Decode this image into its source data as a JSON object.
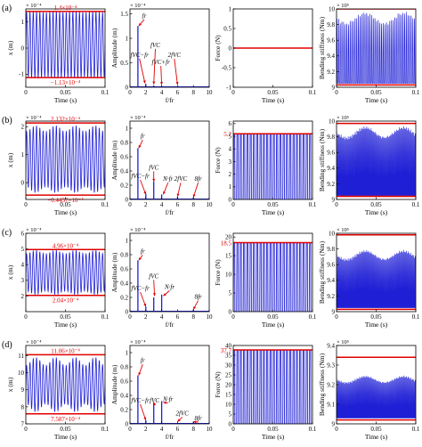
{
  "colors": {
    "signal": "#1f1fd6",
    "mark": "#e00000",
    "axis": "#000000"
  },
  "row_labels": [
    "(a)",
    "(b)",
    "(c)",
    "(d)"
  ],
  "axis_text": {
    "time_xlabel": "Time (s)",
    "freq_xlabel": "f/fr",
    "disp_ylabel": "x (m)",
    "amp_ylabel": "Amplitude (m)",
    "force_ylabel": "Force (N)",
    "stiff_ylabel": "Bending stiffness (Nm)"
  },
  "chart_data": [
    {
      "type": "line",
      "row": "(a)",
      "panel": "displacement",
      "multiplier": "× 10⁻⁴",
      "xlim": [
        0,
        0.1
      ],
      "ylim": [
        -1.5,
        1.5
      ],
      "xticks": [
        "0",
        "0.05",
        "0.1"
      ],
      "yticks": [
        "-1",
        "0",
        "1"
      ],
      "bands": [
        {
          "value": 1.4,
          "label": "1.4×10⁻⁴"
        },
        {
          "value": -1.13,
          "label": "−1.13×10⁻⁴"
        }
      ],
      "signal": {
        "center": 0.13,
        "amp": 1.27,
        "cycles": 24,
        "mod": 0.03
      }
    },
    {
      "type": "bar",
      "row": "(a)",
      "panel": "spectrum",
      "multiplier": "× 10⁻⁴",
      "xlim": [
        0,
        10
      ],
      "ylim": [
        0,
        1.6
      ],
      "xticks": [
        "0",
        "2",
        "4",
        "6",
        "8",
        "10"
      ],
      "yticks": [
        "0",
        "0.5",
        "1",
        "1.5"
      ],
      "lines": [
        {
          "x": 1,
          "y": 1.25
        },
        {
          "x": 2,
          "y": 0.07
        },
        {
          "x": 3,
          "y": 0.04
        },
        {
          "x": 4,
          "y": 0.03
        }
      ],
      "annotations": [
        {
          "text": "fr",
          "tx": 1.8,
          "ty": 1.42,
          "ax": 1.1,
          "ay": 1.25
        },
        {
          "text": "fVC−fr",
          "tx": 1.2,
          "ty": 0.62,
          "ax": 1.9,
          "ay": 0.08
        },
        {
          "text": "fVC",
          "tx": 3.2,
          "ty": 0.82,
          "ax": 3.0,
          "ay": 0.06
        },
        {
          "text": "fVC+fr",
          "tx": 3.9,
          "ty": 0.47,
          "ax": 4.0,
          "ay": 0.05
        },
        {
          "text": "2fVC",
          "tx": 5.6,
          "ty": 0.62,
          "ax": 6.0,
          "ay": 0.05
        }
      ]
    },
    {
      "type": "line",
      "row": "(a)",
      "panel": "force",
      "multiplier": "",
      "xlim": [
        0,
        0.1
      ],
      "ylim": [
        -1,
        1
      ],
      "xticks": [
        "0",
        "0.05",
        "0.1"
      ],
      "yticks": [
        "-1",
        "-0.5",
        "0",
        "0.5",
        "1"
      ],
      "value": 0,
      "bands": []
    },
    {
      "type": "line",
      "row": "(a)",
      "panel": "stiffness",
      "multiplier": "× 10⁵",
      "xlim": [
        0,
        0.1
      ],
      "ylim": [
        9,
        10
      ],
      "xticks": [
        "0",
        "0.05",
        "0.1"
      ],
      "yticks": [
        "9",
        "9.2",
        "9.4",
        "9.6",
        "9.8",
        "10"
      ],
      "bands": [
        {
          "value": 10,
          "label": ""
        },
        {
          "value": 9.03,
          "label": ""
        }
      ],
      "signal": {
        "low": 9.05,
        "high": 9.95,
        "cycles": 48
      }
    },
    {
      "type": "line",
      "row": "(b)",
      "panel": "displacement",
      "multiplier": "× 10⁻⁴",
      "xlim": [
        0,
        0.1
      ],
      "ylim": [
        -0.6,
        2.2
      ],
      "xticks": [
        "0",
        "0.05",
        "0.1"
      ],
      "yticks": [
        "0",
        "1",
        "2"
      ],
      "bands": [
        {
          "value": 2.132,
          "label": "2.132×10⁻⁴"
        },
        {
          "value": -0.4457,
          "label": "−0.4457×10⁻⁴"
        }
      ],
      "signal": {
        "center": 0.84,
        "amp": 1.2,
        "cycles": 24,
        "mod": 0.18
      }
    },
    {
      "type": "bar",
      "row": "(b)",
      "panel": "spectrum",
      "multiplier": "× 10⁻⁴",
      "xlim": [
        0,
        10
      ],
      "ylim": [
        0,
        1.1
      ],
      "xticks": [
        "0",
        "2",
        "4",
        "6",
        "8",
        "10"
      ],
      "yticks": [
        "0",
        "0.2",
        "0.4",
        "0.6",
        "0.8",
        "1"
      ],
      "lines": [
        {
          "x": 1,
          "y": 0.72
        },
        {
          "x": 2,
          "y": 0.08
        },
        {
          "x": 3,
          "y": 0.25
        },
        {
          "x": 4,
          "y": 0.07
        },
        {
          "x": 6,
          "y": 0.04
        },
        {
          "x": 8,
          "y": 0.03
        }
      ],
      "annotations": [
        {
          "text": "fr",
          "tx": 1.6,
          "ty": 0.86,
          "ax": 1.1,
          "ay": 0.72
        },
        {
          "text": "fVC−fr",
          "tx": 1.3,
          "ty": 0.3,
          "ax": 2.0,
          "ay": 0.07
        },
        {
          "text": "fVC",
          "tx": 3.0,
          "ty": 0.42,
          "ax": 3.0,
          "ay": 0.25
        },
        {
          "text": "N·fr",
          "tx": 4.8,
          "ty": 0.26,
          "ax": 4.2,
          "ay": 0.07
        },
        {
          "text": "2fVC",
          "tx": 6.4,
          "ty": 0.26,
          "ax": 6.0,
          "ay": 0.04
        },
        {
          "text": "8fr",
          "tx": 8.6,
          "ty": 0.26,
          "ax": 8.0,
          "ay": 0.03
        }
      ]
    },
    {
      "type": "line",
      "row": "(b)",
      "panel": "force",
      "multiplier": "",
      "xlim": [
        0,
        0.1
      ],
      "ylim": [
        0,
        6.2
      ],
      "xticks": [
        "0",
        "0.05",
        "0.1"
      ],
      "yticks": [
        "0",
        "1",
        "2",
        "3",
        "4",
        "5",
        "6"
      ],
      "bands": [
        {
          "value": 5.2,
          "label": "5.2"
        }
      ],
      "signal": {
        "peak": 5.2,
        "cycles": 24
      }
    },
    {
      "type": "line",
      "row": "(b)",
      "panel": "stiffness",
      "multiplier": "× 10⁵",
      "xlim": [
        0,
        0.1
      ],
      "ylim": [
        9,
        10
      ],
      "xticks": [
        "0",
        "0.05",
        "0.1"
      ],
      "yticks": [
        "9",
        "9.2",
        "9.4",
        "9.6",
        "9.8",
        "10"
      ],
      "bands": [
        {
          "value": 9.97,
          "label": ""
        },
        {
          "value": 9.04,
          "label": ""
        }
      ],
      "signal": {
        "low": 9.05,
        "high": 9.95,
        "cycles": 90
      }
    },
    {
      "type": "line",
      "row": "(c)",
      "panel": "displacement",
      "multiplier": "× 10⁻⁴",
      "xlim": [
        0,
        0.1
      ],
      "ylim": [
        1,
        6
      ],
      "xticks": [
        "0",
        "0.05",
        "0.1"
      ],
      "yticks": [
        "2",
        "3",
        "4",
        "5",
        "6"
      ],
      "bands": [
        {
          "value": 4.96,
          "label": "4.96×10⁻⁴"
        },
        {
          "value": 2.04,
          "label": "2.04×10⁻⁴"
        }
      ],
      "signal": {
        "center": 3.5,
        "amp": 1.4,
        "cycles": 24,
        "mod": 0.15
      }
    },
    {
      "type": "bar",
      "row": "(c)",
      "panel": "spectrum",
      "multiplier": "× 10⁻⁴",
      "xlim": [
        0,
        10
      ],
      "ylim": [
        0,
        1.1
      ],
      "xticks": [
        "0",
        "2",
        "4",
        "6",
        "8",
        "10"
      ],
      "yticks": [
        "0",
        "0.2",
        "0.4",
        "0.6",
        "0.8",
        "1"
      ],
      "lines": [
        {
          "x": 1,
          "y": 0.72
        },
        {
          "x": 2,
          "y": 0.07
        },
        {
          "x": 3,
          "y": 0.2
        },
        {
          "x": 4,
          "y": 0.24
        },
        {
          "x": 8,
          "y": 0.03
        }
      ],
      "annotations": [
        {
          "text": "fr",
          "tx": 1.6,
          "ty": 0.82,
          "ax": 1.1,
          "ay": 0.72
        },
        {
          "text": "fVC−fr",
          "tx": 1.3,
          "ty": 0.3,
          "ax": 2.0,
          "ay": 0.07
        },
        {
          "text": "fVC",
          "tx": 3.0,
          "ty": 0.47,
          "ax": 3.1,
          "ay": 0.22
        },
        {
          "text": "N·fr",
          "tx": 5.0,
          "ty": 0.32,
          "ax": 4.2,
          "ay": 0.22
        },
        {
          "text": "8fr",
          "tx": 8.6,
          "ty": 0.18,
          "ax": 8.0,
          "ay": 0.03
        }
      ]
    },
    {
      "type": "line",
      "row": "(c)",
      "panel": "force",
      "multiplier": "",
      "xlim": [
        0,
        0.1
      ],
      "ylim": [
        0,
        21
      ],
      "xticks": [
        "0",
        "0.05",
        "0.1"
      ],
      "yticks": [
        "0",
        "5",
        "10",
        "15",
        "20"
      ],
      "bands": [
        {
          "value": 18.5,
          "label": "18.5"
        }
      ],
      "signal": {
        "peak": 18.5,
        "cycles": 24
      }
    },
    {
      "type": "line",
      "row": "(c)",
      "panel": "stiffness",
      "multiplier": "× 10⁵",
      "xlim": [
        0,
        0.1
      ],
      "ylim": [
        9,
        10
      ],
      "xticks": [
        "0",
        "0.05",
        "0.1"
      ],
      "yticks": [
        "9",
        "9.2",
        "9.4",
        "9.6",
        "9.8",
        "10"
      ],
      "bands": [
        {
          "value": 9.98,
          "label": ""
        },
        {
          "value": 9.03,
          "label": ""
        }
      ],
      "signal": {
        "low": 9.05,
        "high": 9.8,
        "cycles": 90
      }
    },
    {
      "type": "line",
      "row": "(d)",
      "panel": "displacement",
      "multiplier": "× 10⁻⁴",
      "xlim": [
        0,
        0.1
      ],
      "ylim": [
        7,
        11.6
      ],
      "xticks": [
        "0",
        "0.05",
        "0.1"
      ],
      "yticks": [
        "7",
        "8",
        "9",
        "10",
        "11"
      ],
      "bands": [
        {
          "value": 11.06,
          "label": "11.06×10⁻⁴"
        },
        {
          "value": 7.587,
          "label": "7.587×10⁻⁴"
        }
      ],
      "signal": {
        "center": 9.3,
        "amp": 1.6,
        "cycles": 24,
        "mod": 0.3
      }
    },
    {
      "type": "bar",
      "row": "(d)",
      "panel": "spectrum",
      "multiplier": "× 10⁻⁴",
      "xlim": [
        0,
        10
      ],
      "ylim": [
        0,
        1.1
      ],
      "xticks": [
        "0",
        "2",
        "4",
        "6",
        "8",
        "10"
      ],
      "yticks": [
        "0",
        "0.2",
        "0.4",
        "0.6",
        "0.8",
        "1"
      ],
      "lines": [
        {
          "x": 1,
          "y": 0.68
        },
        {
          "x": 2,
          "y": 0.05
        },
        {
          "x": 3,
          "y": 0.3
        },
        {
          "x": 4,
          "y": 0.32
        },
        {
          "x": 8,
          "y": 0.03
        }
      ],
      "annotations": [
        {
          "text": "fr",
          "tx": 1.6,
          "ty": 0.86,
          "ax": 1.1,
          "ay": 0.68
        },
        {
          "text": "fVC−fr",
          "tx": 1.3,
          "ty": 0.3,
          "ax": 2.0,
          "ay": 0.05
        },
        {
          "text": "fVC",
          "tx": 3.1,
          "ty": 0.3,
          "ax": 3.0,
          "ay": 0.3
        },
        {
          "text": "N·fr",
          "tx": 4.8,
          "ty": 0.32,
          "ax": 4.2,
          "ay": 0.3
        },
        {
          "text": "2fVC",
          "tx": 6.6,
          "ty": 0.12,
          "ax": 6.0,
          "ay": 0.03
        },
        {
          "text": "8fr",
          "tx": 8.6,
          "ty": 0.05,
          "ax": 8.0,
          "ay": 0.03
        }
      ]
    },
    {
      "type": "line",
      "row": "(d)",
      "panel": "force",
      "multiplier": "",
      "xlim": [
        0,
        0.1
      ],
      "ylim": [
        0,
        40
      ],
      "xticks": [
        "0",
        "0.05",
        "0.1"
      ],
      "yticks": [
        "0",
        "5",
        "10",
        "15",
        "20",
        "25",
        "30",
        "35",
        "40"
      ],
      "bands": [
        {
          "value": 37.7,
          "label": "37.7"
        }
      ],
      "signal": {
        "peak": 37.7,
        "cycles": 24
      }
    },
    {
      "type": "line",
      "row": "(d)",
      "panel": "stiffness",
      "multiplier": "× 10⁵",
      "xlim": [
        0,
        0.1
      ],
      "ylim": [
        9,
        9.4
      ],
      "xticks": [
        "0",
        "0.05",
        "0.1"
      ],
      "yticks": [
        "9",
        "9.1",
        "9.2",
        "9.3",
        "9.4"
      ],
      "bands": [
        {
          "value": 9.34,
          "label": ""
        },
        {
          "value": 9.02,
          "label": ""
        }
      ],
      "signal": {
        "low": 9.03,
        "high": 9.25,
        "cycles": 90
      }
    }
  ]
}
